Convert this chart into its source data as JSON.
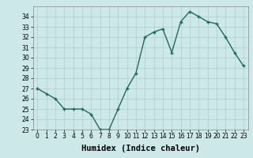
{
  "xlabel": "Humidex (Indice chaleur)",
  "x": [
    0,
    1,
    2,
    3,
    4,
    5,
    6,
    7,
    8,
    9,
    10,
    11,
    12,
    13,
    14,
    15,
    16,
    17,
    18,
    19,
    20,
    21,
    22,
    23
  ],
  "y": [
    27,
    26.5,
    26,
    25,
    25,
    25,
    24.5,
    23,
    23,
    25,
    27,
    28.5,
    32,
    32.5,
    32.8,
    30.5,
    33.5,
    34.5,
    34,
    33.5,
    33.3,
    32,
    30.5,
    29.2
  ],
  "line_color": "#1a6b5e",
  "marker_color": "#1a6b5e",
  "bg_color": "#cde8e8",
  "grid_color": "#b0cccc",
  "text_color": "#000000",
  "ylim": [
    23,
    35
  ],
  "xlim": [
    -0.5,
    23.5
  ],
  "yticks": [
    23,
    24,
    25,
    26,
    27,
    28,
    29,
    30,
    31,
    32,
    33,
    34
  ],
  "xticks": [
    0,
    1,
    2,
    3,
    4,
    5,
    6,
    7,
    8,
    9,
    10,
    11,
    12,
    13,
    14,
    15,
    16,
    17,
    18,
    19,
    20,
    21,
    22,
    23
  ],
  "tick_fontsize": 5.5,
  "xlabel_fontsize": 7.5,
  "marker_size": 3.5,
  "line_width": 1.0
}
